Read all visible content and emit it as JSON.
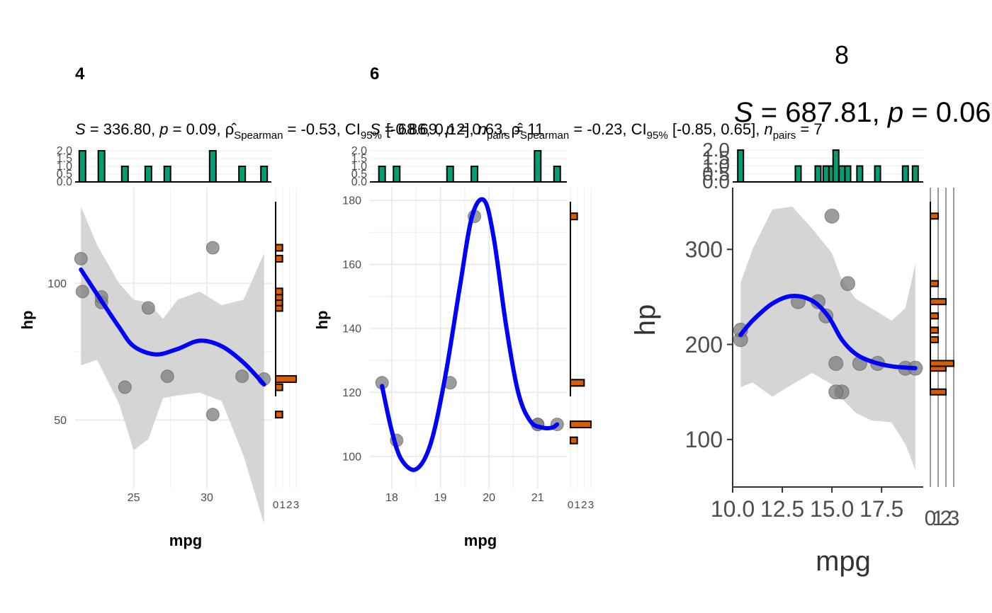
{
  "panels": [
    {
      "facet": "4",
      "subtitle": {
        "s_label": "S",
        "s_value": "336.80",
        "p_label": "p",
        "p_value": "0.09",
        "rho_label": "ρ̂",
        "rho_sub": "Spearman",
        "rho_value": "-0.53, CI",
        "ci_sub": "95%",
        "ci_value": "[-0.86, 0.12],",
        "n_label": "n",
        "n_sub": "pairs",
        "n_value": "11"
      },
      "xlabel": "mpg",
      "ylabel": "hp",
      "x_ticks": [
        "25",
        "30"
      ],
      "y_ticks": [
        "50",
        "100"
      ],
      "marg_top_ticks": [
        "0.0",
        "0.5",
        "1.0",
        "1.5",
        "2.0"
      ],
      "marg_right_ticks": [
        "0",
        "1",
        "2",
        "3"
      ]
    },
    {
      "facet": "6",
      "subtitle": {
        "s_label": "S",
        "s_value": "68.69",
        "p_label": "p",
        "p_value": "0.63",
        "rho_label": "ρ̂",
        "rho_sub": "Spearman",
        "rho_value": "= -0.23, CI",
        "ci_sub": "95%",
        "ci_value": "[-0.85, 0.65],",
        "n_label": "n",
        "n_sub": "pairs",
        "n_value": "7"
      },
      "xlabel": "mpg",
      "ylabel": "hp",
      "x_ticks": [
        "18",
        "19",
        "20",
        "21"
      ],
      "y_ticks": [
        "100",
        "120",
        "140",
        "160",
        "180"
      ],
      "marg_top_ticks": [
        "0.0",
        "0.5",
        "1.0",
        "1.5",
        "2.0"
      ],
      "marg_right_ticks": [
        "0",
        "1",
        "2",
        "3"
      ]
    },
    {
      "facet": "8",
      "subtitle": {
        "s_label": "S",
        "s_value": "687.81",
        "p_label": "p",
        "p_value": "0.06"
      },
      "xlabel": "mpg",
      "ylabel": "hp",
      "x_ticks": [
        "10.0",
        "12.5",
        "15.0",
        "17.5"
      ],
      "y_ticks": [
        "100",
        "200",
        "300"
      ],
      "marg_top_ticks": [
        "0.0",
        "0.5",
        "1.0",
        "1.5",
        "2.0"
      ],
      "marg_right_ticks": [
        "0",
        "1",
        "2",
        "3"
      ]
    }
  ],
  "colors": {
    "points": "#808080",
    "smooth_line": "#0000FF",
    "ribbon": "#D3D3D3",
    "hist_top": "#009E73",
    "hist_right": "#D55E00",
    "grid": "#EBEBEB"
  },
  "chart_data": [
    {
      "type": "scatter",
      "facet": "4",
      "xlabel": "mpg",
      "ylabel": "hp",
      "xlim": [
        21.4,
        33.9
      ],
      "ylim": [
        25,
        135
      ],
      "points": [
        {
          "x": 22.8,
          "y": 93
        },
        {
          "x": 24.4,
          "y": 62
        },
        {
          "x": 22.8,
          "y": 95
        },
        {
          "x": 32.4,
          "y": 66
        },
        {
          "x": 30.4,
          "y": 52
        },
        {
          "x": 33.9,
          "y": 65
        },
        {
          "x": 21.5,
          "y": 97
        },
        {
          "x": 27.3,
          "y": 66
        },
        {
          "x": 26.0,
          "y": 91
        },
        {
          "x": 30.4,
          "y": 113
        },
        {
          "x": 21.4,
          "y": 109
        }
      ],
      "smooth": [
        {
          "x": 21.4,
          "y": 105
        },
        {
          "x": 22.5,
          "y": 96
        },
        {
          "x": 24.0,
          "y": 84
        },
        {
          "x": 25.0,
          "y": 77
        },
        {
          "x": 26.5,
          "y": 74
        },
        {
          "x": 28.0,
          "y": 76
        },
        {
          "x": 29.5,
          "y": 79
        },
        {
          "x": 31.0,
          "y": 77
        },
        {
          "x": 32.5,
          "y": 71
        },
        {
          "x": 33.9,
          "y": 63
        }
      ],
      "ribbon_upper": [
        {
          "x": 21.4,
          "y": 128
        },
        {
          "x": 22.5,
          "y": 114
        },
        {
          "x": 24.0,
          "y": 100
        },
        {
          "x": 25.0,
          "y": 94
        },
        {
          "x": 26.0,
          "y": 93
        },
        {
          "x": 27.0,
          "y": 87
        },
        {
          "x": 28.0,
          "y": 94
        },
        {
          "x": 29.5,
          "y": 97
        },
        {
          "x": 31.0,
          "y": 92
        },
        {
          "x": 32.5,
          "y": 94
        },
        {
          "x": 33.9,
          "y": 111
        }
      ],
      "ribbon_lower": [
        {
          "x": 21.4,
          "y": 70
        },
        {
          "x": 22.5,
          "y": 72
        },
        {
          "x": 24.0,
          "y": 56
        },
        {
          "x": 25.0,
          "y": 39
        },
        {
          "x": 26.0,
          "y": 43
        },
        {
          "x": 27.0,
          "y": 58
        },
        {
          "x": 28.0,
          "y": 59
        },
        {
          "x": 29.5,
          "y": 60
        },
        {
          "x": 31.0,
          "y": 57
        },
        {
          "x": 32.5,
          "y": 37
        },
        {
          "x": 33.9,
          "y": 12
        }
      ],
      "hist_x": [
        {
          "x": 21.5,
          "count": 2
        },
        {
          "x": 22.8,
          "count": 2
        },
        {
          "x": 24.4,
          "count": 1
        },
        {
          "x": 26.0,
          "count": 1
        },
        {
          "x": 27.3,
          "count": 1
        },
        {
          "x": 30.4,
          "count": 2
        },
        {
          "x": 32.4,
          "count": 1
        },
        {
          "x": 33.9,
          "count": 1
        }
      ],
      "hist_y": [
        {
          "y": 52,
          "count": 1
        },
        {
          "y": 62,
          "count": 1
        },
        {
          "y": 65,
          "count": 3
        },
        {
          "y": 91,
          "count": 1
        },
        {
          "y": 93,
          "count": 1
        },
        {
          "y": 95,
          "count": 1
        },
        {
          "y": 97,
          "count": 1
        },
        {
          "y": 109,
          "count": 1
        },
        {
          "y": 113,
          "count": 1
        }
      ]
    },
    {
      "type": "scatter",
      "facet": "6",
      "xlabel": "mpg",
      "ylabel": "hp",
      "xlim": [
        17.7,
        21.4
      ],
      "ylim": [
        93,
        182
      ],
      "points": [
        {
          "x": 21.0,
          "y": 110
        },
        {
          "x": 21.0,
          "y": 110
        },
        {
          "x": 21.4,
          "y": 110
        },
        {
          "x": 18.1,
          "y": 105
        },
        {
          "x": 19.2,
          "y": 123
        },
        {
          "x": 17.8,
          "y": 123
        },
        {
          "x": 19.7,
          "y": 175
        }
      ],
      "smooth": [
        {
          "x": 17.8,
          "y": 122
        },
        {
          "x": 18.0,
          "y": 108
        },
        {
          "x": 18.2,
          "y": 99
        },
        {
          "x": 18.5,
          "y": 96
        },
        {
          "x": 18.8,
          "y": 104
        },
        {
          "x": 19.1,
          "y": 125
        },
        {
          "x": 19.4,
          "y": 153
        },
        {
          "x": 19.65,
          "y": 175
        },
        {
          "x": 19.9,
          "y": 180
        },
        {
          "x": 20.1,
          "y": 168
        },
        {
          "x": 20.35,
          "y": 141
        },
        {
          "x": 20.6,
          "y": 120
        },
        {
          "x": 20.85,
          "y": 111
        },
        {
          "x": 21.1,
          "y": 109
        },
        {
          "x": 21.3,
          "y": 109
        },
        {
          "x": 21.4,
          "y": 110
        }
      ],
      "hist_x": [
        {
          "x": 17.8,
          "count": 1
        },
        {
          "x": 18.1,
          "count": 1
        },
        {
          "x": 19.2,
          "count": 1
        },
        {
          "x": 19.7,
          "count": 1
        },
        {
          "x": 21.0,
          "count": 2
        },
        {
          "x": 21.4,
          "count": 1
        }
      ],
      "hist_y": [
        {
          "y": 105,
          "count": 1
        },
        {
          "y": 110,
          "count": 3
        },
        {
          "y": 123,
          "count": 2
        },
        {
          "y": 175,
          "count": 1
        }
      ]
    },
    {
      "type": "scatter",
      "facet": "8",
      "xlabel": "mpg",
      "ylabel": "hp",
      "xlim": [
        10.4,
        19.2
      ],
      "ylim": [
        50,
        365
      ],
      "points": [
        {
          "x": 18.7,
          "y": 175
        },
        {
          "x": 14.3,
          "y": 245
        },
        {
          "x": 16.4,
          "y": 180
        },
        {
          "x": 17.3,
          "y": 180
        },
        {
          "x": 15.2,
          "y": 180
        },
        {
          "x": 10.4,
          "y": 205
        },
        {
          "x": 10.4,
          "y": 215
        },
        {
          "x": 14.7,
          "y": 230
        },
        {
          "x": 15.5,
          "y": 150
        },
        {
          "x": 15.2,
          "y": 150
        },
        {
          "x": 13.3,
          "y": 245
        },
        {
          "x": 19.2,
          "y": 175
        },
        {
          "x": 15.8,
          "y": 264
        },
        {
          "x": 15.0,
          "y": 335
        }
      ],
      "smooth": [
        {
          "x": 10.4,
          "y": 210
        },
        {
          "x": 11.0,
          "y": 225
        },
        {
          "x": 12.0,
          "y": 243
        },
        {
          "x": 13.0,
          "y": 251
        },
        {
          "x": 14.0,
          "y": 246
        },
        {
          "x": 14.8,
          "y": 230
        },
        {
          "x": 15.5,
          "y": 205
        },
        {
          "x": 16.2,
          "y": 190
        },
        {
          "x": 17.0,
          "y": 182
        },
        {
          "x": 18.0,
          "y": 177
        },
        {
          "x": 19.2,
          "y": 175
        }
      ],
      "ribbon_upper": [
        {
          "x": 10.4,
          "y": 265
        },
        {
          "x": 11.0,
          "y": 300
        },
        {
          "x": 12.0,
          "y": 342
        },
        {
          "x": 13.0,
          "y": 345
        },
        {
          "x": 14.0,
          "y": 322
        },
        {
          "x": 15.0,
          "y": 296
        },
        {
          "x": 15.5,
          "y": 268
        },
        {
          "x": 16.2,
          "y": 248
        },
        {
          "x": 17.0,
          "y": 238
        },
        {
          "x": 18.0,
          "y": 225
        },
        {
          "x": 18.7,
          "y": 238
        },
        {
          "x": 19.2,
          "y": 285
        }
      ],
      "ribbon_lower": [
        {
          "x": 10.4,
          "y": 155
        },
        {
          "x": 11.0,
          "y": 160
        },
        {
          "x": 12.0,
          "y": 145
        },
        {
          "x": 13.0,
          "y": 158
        },
        {
          "x": 14.0,
          "y": 170
        },
        {
          "x": 15.0,
          "y": 158
        },
        {
          "x": 15.5,
          "y": 143
        },
        {
          "x": 16.2,
          "y": 128
        },
        {
          "x": 17.0,
          "y": 120
        },
        {
          "x": 18.0,
          "y": 118
        },
        {
          "x": 18.7,
          "y": 95
        },
        {
          "x": 19.2,
          "y": 68
        }
      ],
      "hist_x": [
        {
          "x": 10.4,
          "count": 2
        },
        {
          "x": 13.3,
          "count": 1
        },
        {
          "x": 14.3,
          "count": 1
        },
        {
          "x": 14.7,
          "count": 1
        },
        {
          "x": 15.0,
          "count": 1
        },
        {
          "x": 15.2,
          "count": 2
        },
        {
          "x": 15.5,
          "count": 1
        },
        {
          "x": 15.8,
          "count": 1
        },
        {
          "x": 16.4,
          "count": 1
        },
        {
          "x": 17.3,
          "count": 1
        },
        {
          "x": 18.7,
          "count": 1
        },
        {
          "x": 19.2,
          "count": 1
        }
      ],
      "hist_y": [
        {
          "y": 150,
          "count": 2
        },
        {
          "y": 175,
          "count": 2
        },
        {
          "y": 180,
          "count": 3
        },
        {
          "y": 205,
          "count": 1
        },
        {
          "y": 215,
          "count": 1
        },
        {
          "y": 230,
          "count": 1
        },
        {
          "y": 245,
          "count": 2
        },
        {
          "y": 264,
          "count": 1
        },
        {
          "y": 335,
          "count": 1
        }
      ]
    }
  ]
}
